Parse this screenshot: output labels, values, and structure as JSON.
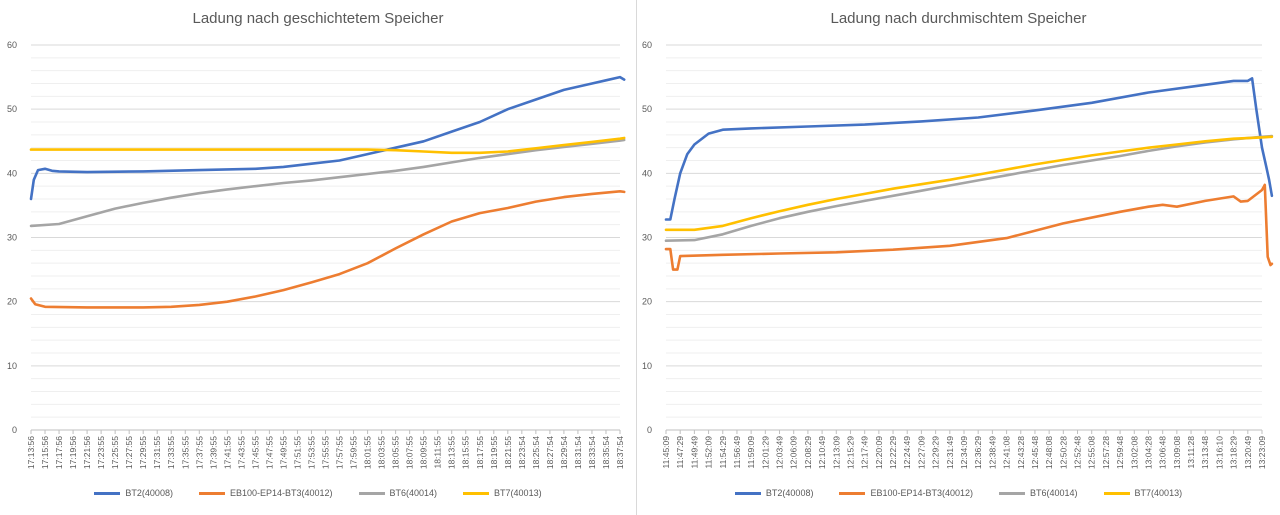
{
  "chart_data": [
    {
      "type": "line",
      "title": "Ladung nach geschichtetem Speicher",
      "ylim": [
        0,
        60
      ],
      "yticks": [
        0,
        10,
        20,
        30,
        40,
        50,
        60
      ],
      "grid": true,
      "legend_position": "bottom",
      "x_tick_labels": [
        "17:13:56",
        "17:15:56",
        "17:17:56",
        "17:19:56",
        "17:21:56",
        "17:23:55",
        "17:25:55",
        "17:27:55",
        "17:29:55",
        "17:31:55",
        "17:33:55",
        "17:35:55",
        "17:37:55",
        "17:39:55",
        "17:41:55",
        "17:43:55",
        "17:45:55",
        "17:47:55",
        "17:49:55",
        "17:51:55",
        "17:53:55",
        "17:55:55",
        "17:57:55",
        "17:59:55",
        "18:01:55",
        "18:03:55",
        "18:05:55",
        "18:07:55",
        "18:09:55",
        "18:11:55",
        "18:13:55",
        "18:15:55",
        "18:17:55",
        "18:19:55",
        "18:21:55",
        "18:23:54",
        "18:25:54",
        "18:27:54",
        "18:29:54",
        "18:31:54",
        "18:33:54",
        "18:35:54",
        "18:37:54"
      ],
      "series": [
        {
          "name": "BT2(40008)",
          "color": "#4472C4",
          "points": [
            [
              0,
              36
            ],
            [
              0.2,
              39
            ],
            [
              0.5,
              40.5
            ],
            [
              1,
              40.7
            ],
            [
              1.5,
              40.4
            ],
            [
              2,
              40.3
            ],
            [
              4,
              40.2
            ],
            [
              8,
              40.3
            ],
            [
              12,
              40.5
            ],
            [
              16,
              40.7
            ],
            [
              18,
              41
            ],
            [
              20,
              41.5
            ],
            [
              22,
              42
            ],
            [
              24,
              43
            ],
            [
              26,
              44
            ],
            [
              28,
              45
            ],
            [
              30,
              46.5
            ],
            [
              32,
              48
            ],
            [
              34,
              50
            ],
            [
              36,
              51.5
            ],
            [
              38,
              53
            ],
            [
              40,
              54
            ],
            [
              41,
              54.5
            ],
            [
              42,
              55
            ],
            [
              42.3,
              54.6
            ]
          ]
        },
        {
          "name": "EB100-EP14-BT3(40012)",
          "color": "#ED7D31",
          "points": [
            [
              0,
              20.5
            ],
            [
              0.3,
              19.6
            ],
            [
              1,
              19.2
            ],
            [
              4,
              19.1
            ],
            [
              8,
              19.1
            ],
            [
              10,
              19.2
            ],
            [
              12,
              19.5
            ],
            [
              14,
              20
            ],
            [
              16,
              20.8
            ],
            [
              18,
              21.8
            ],
            [
              20,
              23
            ],
            [
              22,
              24.3
            ],
            [
              24,
              26
            ],
            [
              26,
              28.3
            ],
            [
              28,
              30.5
            ],
            [
              30,
              32.5
            ],
            [
              32,
              33.8
            ],
            [
              34,
              34.6
            ],
            [
              36,
              35.6
            ],
            [
              38,
              36.3
            ],
            [
              40,
              36.8
            ],
            [
              42,
              37.2
            ],
            [
              42.3,
              37.1
            ]
          ]
        },
        {
          "name": "BT6(40014)",
          "color": "#A5A5A5",
          "points": [
            [
              0,
              31.8
            ],
            [
              2,
              32.1
            ],
            [
              4,
              33.3
            ],
            [
              6,
              34.5
            ],
            [
              8,
              35.4
            ],
            [
              10,
              36.2
            ],
            [
              12,
              36.9
            ],
            [
              14,
              37.5
            ],
            [
              16,
              38
            ],
            [
              18,
              38.5
            ],
            [
              20,
              38.9
            ],
            [
              22,
              39.4
            ],
            [
              24,
              39.9
            ],
            [
              26,
              40.4
            ],
            [
              28,
              41
            ],
            [
              30,
              41.7
            ],
            [
              32,
              42.4
            ],
            [
              34,
              43
            ],
            [
              36,
              43.6
            ],
            [
              38,
              44.1
            ],
            [
              40,
              44.6
            ],
            [
              42,
              45.1
            ],
            [
              42.3,
              45.2
            ]
          ]
        },
        {
          "name": "BT7(40013)",
          "color": "#FFC000",
          "points": [
            [
              0,
              43.7
            ],
            [
              10,
              43.7
            ],
            [
              20,
              43.7
            ],
            [
              24,
              43.7
            ],
            [
              26,
              43.6
            ],
            [
              28,
              43.4
            ],
            [
              30,
              43.2
            ],
            [
              32,
              43.2
            ],
            [
              34,
              43.4
            ],
            [
              36,
              43.9
            ],
            [
              38,
              44.4
            ],
            [
              40,
              44.9
            ],
            [
              42,
              45.4
            ],
            [
              42.3,
              45.5
            ]
          ]
        }
      ]
    },
    {
      "type": "line",
      "title": "Ladung nach durchmischtem Speicher",
      "ylim": [
        0,
        60
      ],
      "yticks": [
        0,
        10,
        20,
        30,
        40,
        50,
        60
      ],
      "grid": true,
      "legend_position": "bottom",
      "x_tick_labels": [
        "11:45:09",
        "11:47:29",
        "11:49:49",
        "11:52:09",
        "11:54:29",
        "11:56:49",
        "11:59:09",
        "12:01:29",
        "12:03:49",
        "12:06:09",
        "12:08:29",
        "12:10:49",
        "12:13:09",
        "12:15:29",
        "12:17:49",
        "12:20:09",
        "12:22:29",
        "12:24:49",
        "12:27:09",
        "12:29:29",
        "12:31:49",
        "12:34:09",
        "12:36:29",
        "12:38:49",
        "12:41:08",
        "12:43:28",
        "12:45:48",
        "12:48:08",
        "12:50:28",
        "12:52:48",
        "12:55:08",
        "12:57:28",
        "12:59:48",
        "13:02:08",
        "13:04:28",
        "13:06:48",
        "13:09:08",
        "13:11:28",
        "13:13:48",
        "13:16:10",
        "13:18:29",
        "13:20:49",
        "13:23:09"
      ],
      "series": [
        {
          "name": "BT2(40008)",
          "color": "#4472C4",
          "points": [
            [
              0,
              32.8
            ],
            [
              0.3,
              32.8
            ],
            [
              0.6,
              36
            ],
            [
              1,
              40
            ],
            [
              1.5,
              43
            ],
            [
              2,
              44.5
            ],
            [
              3,
              46.2
            ],
            [
              4,
              46.8
            ],
            [
              6,
              47
            ],
            [
              10,
              47.3
            ],
            [
              14,
              47.6
            ],
            [
              18,
              48.1
            ],
            [
              22,
              48.7
            ],
            [
              26,
              49.8
            ],
            [
              30,
              51
            ],
            [
              34,
              52.6
            ],
            [
              38,
              53.8
            ],
            [
              40,
              54.4
            ],
            [
              41,
              54.4
            ],
            [
              41.3,
              54.8
            ],
            [
              41.6,
              50
            ],
            [
              42,
              44
            ],
            [
              42.3,
              41
            ],
            [
              42.5,
              39
            ],
            [
              42.7,
              36.5
            ]
          ]
        },
        {
          "name": "EB100-EP14-BT3(40012)",
          "color": "#ED7D31",
          "points": [
            [
              0,
              28.2
            ],
            [
              0.3,
              28.2
            ],
            [
              0.5,
              25
            ],
            [
              0.8,
              25
            ],
            [
              1,
              27.1
            ],
            [
              4,
              27.3
            ],
            [
              8,
              27.5
            ],
            [
              12,
              27.7
            ],
            [
              16,
              28.1
            ],
            [
              20,
              28.7
            ],
            [
              24,
              29.9
            ],
            [
              28,
              32.2
            ],
            [
              32,
              34
            ],
            [
              34,
              34.8
            ],
            [
              35,
              35.1
            ],
            [
              36,
              34.8
            ],
            [
              38,
              35.7
            ],
            [
              40,
              36.4
            ],
            [
              40.5,
              35.6
            ],
            [
              41,
              35.7
            ],
            [
              42,
              37.4
            ],
            [
              42.2,
              38.2
            ],
            [
              42.4,
              27
            ],
            [
              42.6,
              25.7
            ],
            [
              42.7,
              25.9
            ]
          ]
        },
        {
          "name": "BT6(40014)",
          "color": "#A5A5A5",
          "points": [
            [
              0,
              29.5
            ],
            [
              2,
              29.6
            ],
            [
              4,
              30.5
            ],
            [
              6,
              31.8
            ],
            [
              8,
              33
            ],
            [
              10,
              34
            ],
            [
              12,
              34.9
            ],
            [
              14,
              35.7
            ],
            [
              16,
              36.5
            ],
            [
              18,
              37.3
            ],
            [
              20,
              38.1
            ],
            [
              22,
              38.9
            ],
            [
              24,
              39.7
            ],
            [
              26,
              40.5
            ],
            [
              28,
              41.3
            ],
            [
              30,
              42
            ],
            [
              32,
              42.7
            ],
            [
              34,
              43.5
            ],
            [
              36,
              44.2
            ],
            [
              38,
              44.8
            ],
            [
              40,
              45.3
            ],
            [
              42,
              45.7
            ],
            [
              42.7,
              45.8
            ]
          ]
        },
        {
          "name": "BT7(40013)",
          "color": "#FFC000",
          "points": [
            [
              0,
              31.2
            ],
            [
              2,
              31.2
            ],
            [
              4,
              31.8
            ],
            [
              6,
              33
            ],
            [
              8,
              34.1
            ],
            [
              10,
              35.1
            ],
            [
              12,
              36
            ],
            [
              14,
              36.8
            ],
            [
              16,
              37.6
            ],
            [
              18,
              38.3
            ],
            [
              20,
              39
            ],
            [
              22,
              39.8
            ],
            [
              24,
              40.6
            ],
            [
              26,
              41.4
            ],
            [
              28,
              42.1
            ],
            [
              30,
              42.8
            ],
            [
              32,
              43.4
            ],
            [
              34,
              44
            ],
            [
              36,
              44.5
            ],
            [
              38,
              45
            ],
            [
              40,
              45.4
            ],
            [
              42,
              45.6
            ],
            [
              42.7,
              45.7
            ]
          ]
        }
      ]
    }
  ]
}
